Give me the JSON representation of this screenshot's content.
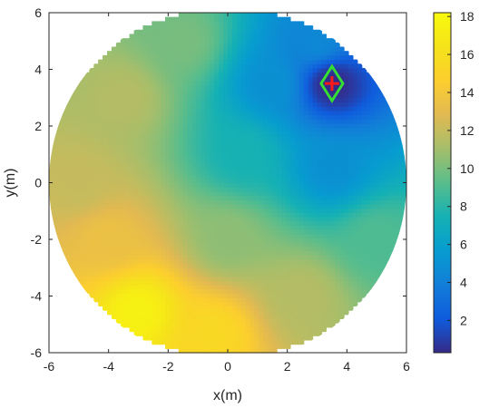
{
  "chart_data": {
    "type": "heatmap",
    "title": "",
    "xlabel": "x(m)",
    "ylabel": "y(m)",
    "xlim": [
      -6,
      6
    ],
    "ylim": [
      -6,
      6
    ],
    "x_ticks": [
      "-6",
      "-4",
      "-2",
      "0",
      "2",
      "4",
      "6"
    ],
    "y_ticks": [
      "-6",
      "-4",
      "-2",
      "0",
      "2",
      "4",
      "6"
    ],
    "domain": {
      "shape": "circle",
      "center": [
        0,
        0
      ],
      "radius": 6
    },
    "colormap": "parula",
    "clim": [
      0.3,
      18.2
    ],
    "colorbar_ticks": [
      "2",
      "4",
      "6",
      "8",
      "10",
      "12",
      "14",
      "16",
      "18"
    ],
    "field_samples": [
      {
        "x": 3.5,
        "y": 3.5,
        "value": 0.3
      },
      {
        "x": 1.5,
        "y": 3.5,
        "value": 5.0
      },
      {
        "x": 3.5,
        "y": 0.5,
        "value": 5.0
      },
      {
        "x": 0.5,
        "y": 1.0,
        "value": 7.5
      },
      {
        "x": -1.5,
        "y": 5.0,
        "value": 10.0
      },
      {
        "x": -3.5,
        "y": 3.0,
        "value": 11.5
      },
      {
        "x": -5.0,
        "y": 0.0,
        "value": 12.0
      },
      {
        "x": -4.0,
        "y": -2.0,
        "value": 13.5
      },
      {
        "x": -3.0,
        "y": -4.5,
        "value": 17.5
      },
      {
        "x": -0.5,
        "y": -5.3,
        "value": 15.5
      },
      {
        "x": 2.5,
        "y": -4.0,
        "value": 11.5
      },
      {
        "x": 5.0,
        "y": -2.0,
        "value": 9.0
      },
      {
        "x": 0.0,
        "y": -2.0,
        "value": 10.5
      },
      {
        "x": 3.0,
        "y": 5.0,
        "value": 4.5
      }
    ],
    "markers": [
      {
        "type": "diamond",
        "x": 3.5,
        "y": 3.5,
        "color": "#33e033"
      },
      {
        "type": "plus",
        "x": 3.5,
        "y": 3.5,
        "color": "#ff1a1a"
      }
    ]
  }
}
